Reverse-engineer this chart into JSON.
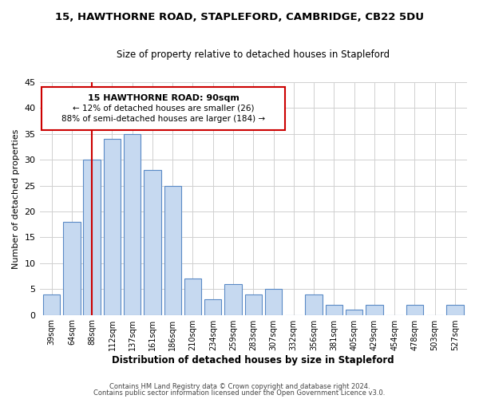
{
  "title": "15, HAWTHORNE ROAD, STAPLEFORD, CAMBRIDGE, CB22 5DU",
  "subtitle": "Size of property relative to detached houses in Stapleford",
  "xlabel": "Distribution of detached houses by size in Stapleford",
  "ylabel": "Number of detached properties",
  "bar_labels": [
    "39sqm",
    "64sqm",
    "88sqm",
    "112sqm",
    "137sqm",
    "161sqm",
    "186sqm",
    "210sqm",
    "234sqm",
    "259sqm",
    "283sqm",
    "307sqm",
    "332sqm",
    "356sqm",
    "381sqm",
    "405sqm",
    "429sqm",
    "454sqm",
    "478sqm",
    "503sqm",
    "527sqm"
  ],
  "bar_values": [
    4,
    18,
    30,
    34,
    35,
    28,
    25,
    7,
    3,
    6,
    4,
    5,
    0,
    4,
    2,
    1,
    2,
    0,
    2,
    0,
    2
  ],
  "bar_color": "#c6d9f0",
  "bar_edge_color": "#5a8ac6",
  "marker_index": 2,
  "marker_color": "#cc0000",
  "ylim": [
    0,
    45
  ],
  "annotation_title": "15 HAWTHORNE ROAD: 90sqm",
  "annotation_line1": "← 12% of detached houses are smaller (26)",
  "annotation_line2": "88% of semi-detached houses are larger (184) →",
  "annotation_box_edge": "#cc0000",
  "footer1": "Contains HM Land Registry data © Crown copyright and database right 2024.",
  "footer2": "Contains public sector information licensed under the Open Government Licence v3.0."
}
